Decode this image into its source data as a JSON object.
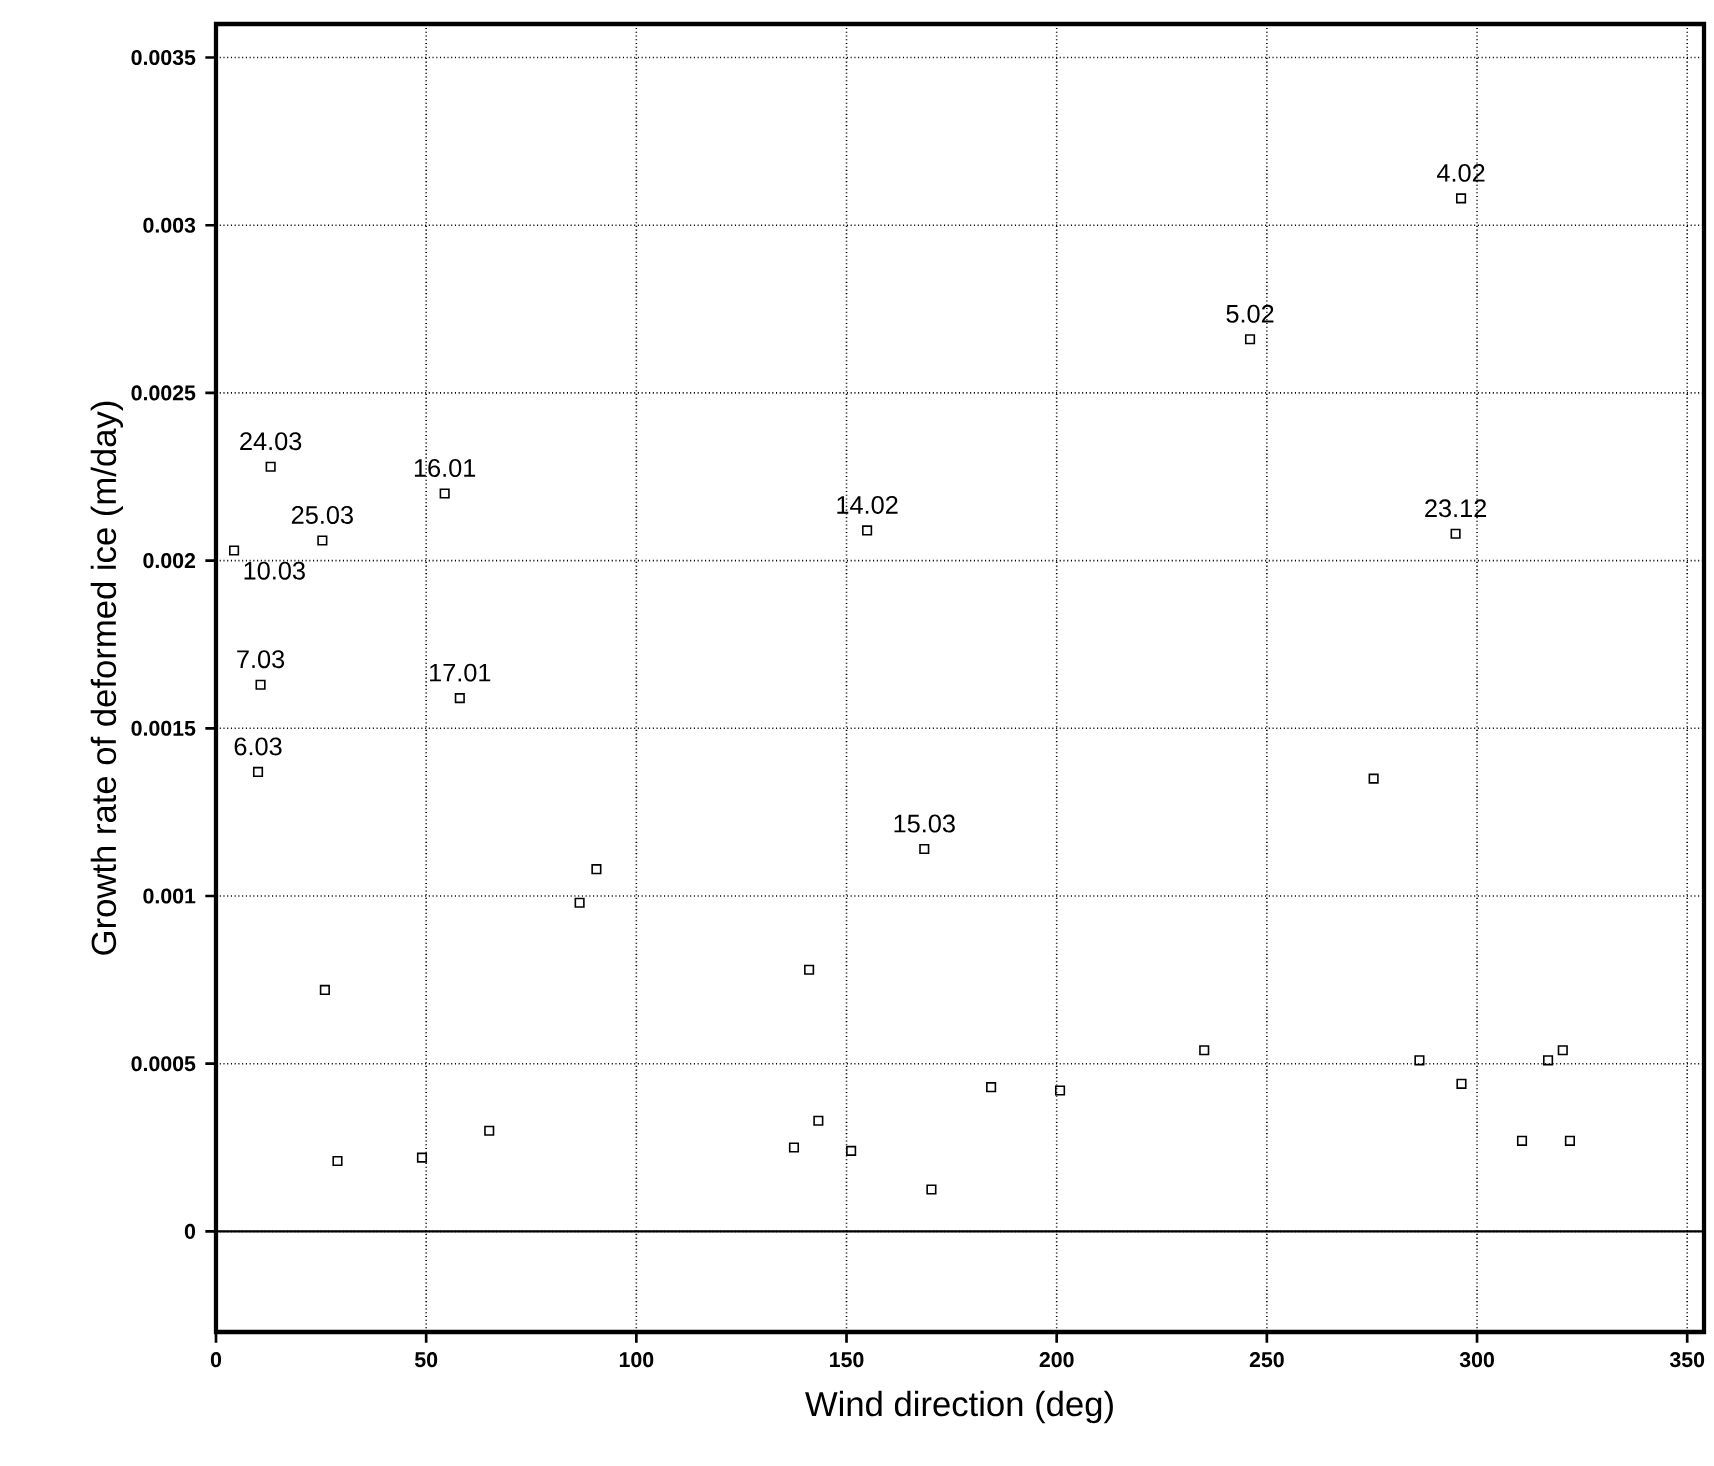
{
  "chart_data": {
    "type": "scatter",
    "xlabel": "Wind direction (deg)",
    "ylabel": "Growth rate of deformed ice (m/day)",
    "x": [
      13.0,
      54.4,
      25.3,
      4.3,
      10.6,
      58.0,
      296.2,
      246.0,
      154.9,
      294.9,
      10.0,
      168.5,
      90.5,
      86.5,
      25.9,
      141.1,
      28.9,
      49.0,
      65.0,
      137.5,
      143.3,
      151.1,
      275.4,
      170.2,
      184.4,
      200.8,
      235.1,
      286.3,
      296.3,
      310.7,
      316.9,
      320.4,
      322.1
    ],
    "series": [
      {
        "color": "#000000",
        "values": [
          0.00228,
          0.0022,
          0.00206,
          0.00203,
          0.00163,
          0.00159,
          0.00308,
          0.00266,
          0.00209,
          0.00208,
          0.00137,
          0.00114,
          0.00108,
          0.00098,
          0.00072,
          0.00078,
          0.00021,
          0.00022,
          0.0003,
          0.00025,
          0.00033,
          0.00024,
          0.00135,
          0.000125,
          0.00043,
          0.00042,
          0.00054,
          0.00051,
          0.00044,
          0.00027,
          0.00051,
          0.00054,
          0.00027
        ]
      }
    ],
    "annotations": [
      {
        "text": "24.03",
        "x": 13.0,
        "y": 0.00228
      },
      {
        "text": "16.01",
        "x": 54.4,
        "y": 0.0022
      },
      {
        "text": "25.03",
        "x": 25.3,
        "y": 0.00206
      },
      {
        "text": "10.03",
        "x": 4.3,
        "y": 0.00203
      },
      {
        "text": "7.03",
        "x": 10.6,
        "y": 0.00163
      },
      {
        "text": "17.01",
        "x": 58.0,
        "y": 0.00159
      },
      {
        "text": "4.02",
        "x": 296.2,
        "y": 0.00308
      },
      {
        "text": "5.02",
        "x": 246.0,
        "y": 0.00266
      },
      {
        "text": "14.02",
        "x": 154.9,
        "y": 0.00209
      },
      {
        "text": "23.12",
        "x": 294.9,
        "y": 0.00208
      },
      {
        "text": "6.03",
        "x": 10.0,
        "y": 0.00137
      },
      {
        "text": "15.03",
        "x": 168.5,
        "y": 0.00114
      }
    ],
    "xlim": [
      0,
      354
    ],
    "ylim": [
      -0.0003,
      0.0036
    ],
    "xticks": [
      0,
      50,
      100,
      150,
      200,
      250,
      300,
      350
    ],
    "yticks": [
      0,
      0.0005,
      0.001,
      0.0015,
      0.002,
      0.0025,
      0.003,
      0.0035
    ],
    "grid": true,
    "marker": "square",
    "ref_lines": [
      {
        "axis": "y",
        "value": 0
      }
    ]
  }
}
